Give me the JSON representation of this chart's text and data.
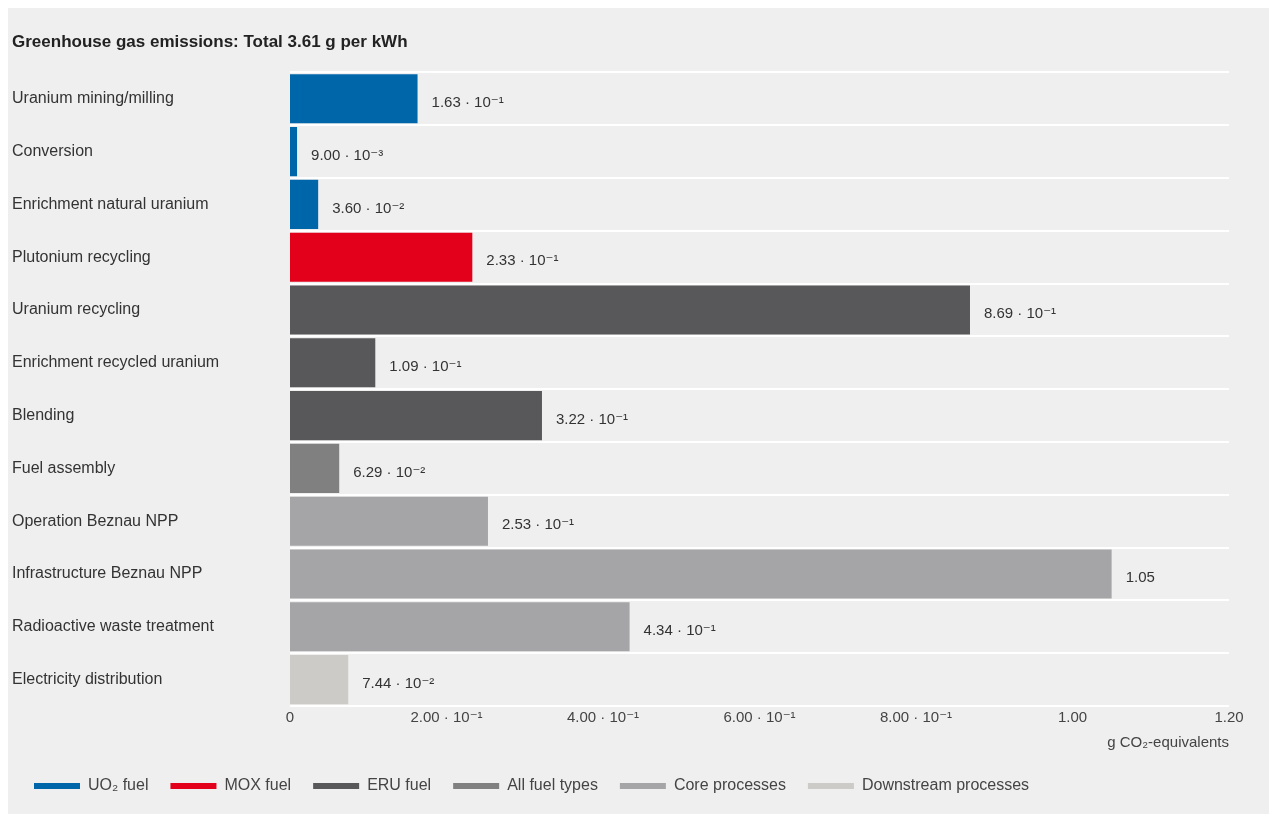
{
  "chart_data": {
    "type": "bar",
    "orientation": "horizontal",
    "title": "Greenhouse gas emissions: Total 3.61 g per kWh",
    "xlabel": "g CO₂-equivalents",
    "categories": [
      "Uranium mining/milling",
      "Conversion",
      "Enrichment natural uranium",
      "Plutonium recycling",
      "Uranium recycling",
      "Enrichment recycled uranium",
      "Blending",
      "Fuel assembly",
      "Operation Beznau NPP",
      "Infrastructure Beznau NPP",
      "Radioactive waste treatment",
      "Electricity distribution"
    ],
    "series": [
      {
        "name": "UO₂ fuel",
        "color": "#0066aa",
        "values": [
          0.163,
          0.009,
          0.036,
          null,
          null,
          null,
          null,
          null,
          null,
          null,
          null,
          null
        ],
        "value_labels": [
          "1.63 · 10⁻¹",
          "9.00 · 10⁻³",
          "3.60 · 10⁻²",
          null,
          null,
          null,
          null,
          null,
          null,
          null,
          null,
          null
        ]
      },
      {
        "name": "MOX fuel",
        "color": "#e2001a",
        "values": [
          null,
          null,
          null,
          0.233,
          null,
          null,
          null,
          null,
          null,
          null,
          null,
          null
        ],
        "value_labels": [
          null,
          null,
          null,
          "2.33 · 10⁻¹",
          null,
          null,
          null,
          null,
          null,
          null,
          null,
          null
        ]
      },
      {
        "name": "ERU fuel",
        "color": "#58585a",
        "values": [
          null,
          null,
          null,
          null,
          0.869,
          0.109,
          0.322,
          null,
          null,
          null,
          null,
          null
        ],
        "value_labels": [
          null,
          null,
          null,
          null,
          "8.69 · 10⁻¹",
          "1.09 · 10⁻¹",
          "3.22 · 10⁻¹",
          null,
          null,
          null,
          null,
          null
        ]
      },
      {
        "name": "All fuel types",
        "color": "#808080",
        "values": [
          null,
          null,
          null,
          null,
          null,
          null,
          null,
          0.0629,
          null,
          null,
          null,
          null
        ],
        "value_labels": [
          null,
          null,
          null,
          null,
          null,
          null,
          null,
          "6.29 · 10⁻²",
          null,
          null,
          null,
          null
        ]
      },
      {
        "name": "Core processes",
        "color": "#a5a5a7",
        "values": [
          null,
          null,
          null,
          null,
          null,
          null,
          null,
          null,
          0.253,
          1.05,
          0.434,
          null
        ],
        "value_labels": [
          null,
          null,
          null,
          null,
          null,
          null,
          null,
          null,
          "2.53 · 10⁻¹",
          "1.05",
          "4.34 · 10⁻¹",
          null
        ]
      },
      {
        "name": "Downstream processes",
        "color": "#cdcbc7",
        "values": [
          null,
          null,
          null,
          null,
          null,
          null,
          null,
          null,
          null,
          null,
          null,
          0.0744
        ],
        "value_labels": [
          null,
          null,
          null,
          null,
          null,
          null,
          null,
          null,
          null,
          null,
          null,
          "7.44 · 10⁻²"
        ]
      }
    ],
    "xlim": [
      0,
      1.2
    ],
    "xticks": [
      0,
      {
        "value": 0.2,
        "label": "2.00 · 10⁻¹"
      },
      {
        "value": 0.4,
        "label": "4.00 · 10⁻¹"
      },
      {
        "value": 0.6,
        "label": "6.00 · 10⁻¹"
      },
      {
        "value": 0.8,
        "label": "8.00 · 10⁻¹"
      },
      {
        "value": 1,
        "label": "1.00"
      },
      {
        "value": 1.2,
        "label": "1.20"
      }
    ],
    "grid": "y",
    "legend": "bottom"
  }
}
